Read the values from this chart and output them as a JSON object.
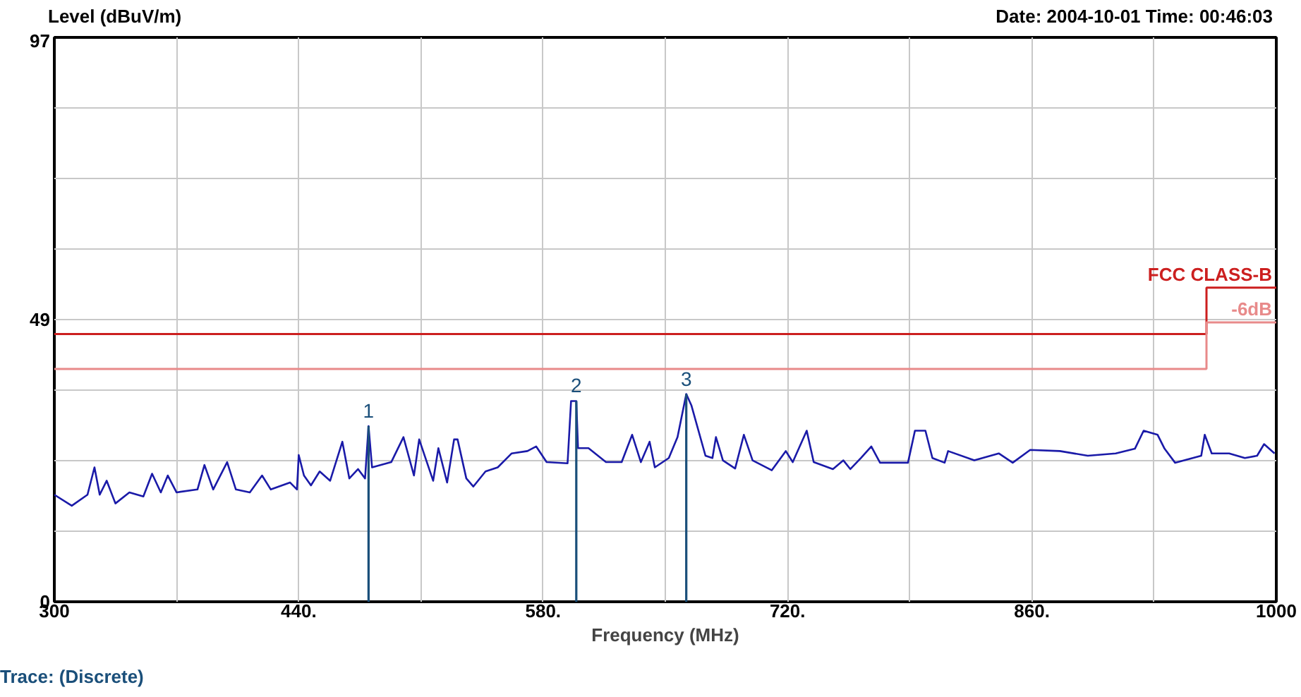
{
  "chart_data": {
    "type": "line",
    "ylabel": "Level (dBuV/m)",
    "xlabel": "Frequency (MHz)",
    "xlim": [
      300,
      1000
    ],
    "ylim": [
      0,
      97
    ],
    "xticks": [
      300,
      {
        "value": 370,
        "label": null
      },
      {
        "value": 440,
        "label": "440."
      },
      {
        "value": 510,
        "label": null
      },
      {
        "value": 580,
        "label": "580."
      },
      {
        "value": 650,
        "label": null
      },
      {
        "value": 720,
        "label": "720."
      },
      {
        "value": 790,
        "label": null
      },
      {
        "value": 860,
        "label": "860."
      },
      {
        "value": 930,
        "label": null
      },
      1000
    ],
    "yticks": [
      0,
      {
        "value": 12.125,
        "label": null
      },
      {
        "value": 24.25,
        "label": null
      },
      {
        "value": 36.375,
        "label": null
      },
      {
        "value": 48.5,
        "label": "49"
      },
      {
        "value": 60.625,
        "label": null
      },
      {
        "value": 72.75,
        "label": null
      },
      {
        "value": 84.875,
        "label": null
      },
      97
    ],
    "grid": true,
    "series": [
      {
        "color": "#1a1aa8",
        "x": [
          300,
          310,
          319,
          323,
          326,
          330,
          335,
          343,
          351,
          356,
          361,
          365,
          370,
          382,
          386,
          391,
          399,
          404,
          412,
          419,
          424,
          435,
          439,
          440,
          443,
          447,
          452,
          458,
          465,
          469,
          474,
          478,
          480,
          482,
          493,
          500,
          506,
          509,
          517,
          520,
          525,
          529,
          531,
          536,
          540,
          547,
          554,
          562,
          571,
          576,
          582,
          594,
          596,
          599,
          600,
          606,
          616,
          625,
          631,
          636,
          641,
          644,
          652,
          657,
          662,
          665,
          673,
          677,
          679,
          683,
          690,
          695,
          700,
          711,
          719,
          723,
          731,
          735,
          746,
          752,
          756,
          762,
          768,
          773,
          789,
          793,
          799,
          803,
          810,
          812,
          827,
          841,
          849,
          859,
          876,
          892,
          908,
          919,
          924,
          932,
          936,
          942,
          957,
          959,
          963,
          973,
          982,
          989,
          993,
          999
        ],
        "values": [
          18.4,
          16.5,
          18.4,
          23.1,
          18.4,
          20.8,
          16.9,
          18.8,
          18.1,
          22.0,
          18.8,
          21.7,
          18.8,
          19.3,
          23.5,
          19.3,
          24.0,
          19.3,
          18.8,
          21.7,
          19.3,
          20.5,
          19.3,
          25.2,
          21.7,
          20.0,
          22.4,
          20.8,
          27.5,
          21.2,
          22.8,
          21.2,
          30.2,
          23.1,
          24.0,
          28.3,
          21.7,
          27.9,
          20.8,
          26.4,
          20.5,
          27.9,
          27.9,
          21.2,
          19.8,
          22.4,
          23.1,
          25.5,
          25.9,
          26.7,
          24.0,
          23.8,
          34.5,
          34.5,
          26.4,
          26.4,
          24.0,
          24.0,
          28.7,
          24.0,
          27.5,
          23.1,
          24.7,
          28.3,
          35.7,
          33.7,
          25.1,
          24.7,
          28.3,
          24.3,
          22.9,
          28.7,
          24.3,
          22.6,
          25.9,
          24.0,
          29.4,
          24.0,
          22.8,
          24.3,
          22.8,
          24.7,
          26.7,
          23.9,
          23.9,
          29.4,
          29.4,
          24.7,
          23.9,
          25.9,
          24.3,
          25.5,
          23.9,
          26.1,
          25.9,
          25.1,
          25.5,
          26.3,
          29.4,
          28.7,
          26.3,
          23.9,
          25.1,
          28.7,
          25.5,
          25.5,
          24.7,
          25.1,
          27.1,
          25.5
        ]
      },
      {
        "type": "bar",
        "color": "#1a4f7a",
        "x": [
          480,
          599,
          662
        ],
        "values": [
          30.2,
          34.5,
          35.7
        ]
      },
      {
        "type": "step",
        "name": "FCC CLASS-B",
        "color": "#cc1f1f",
        "x": [
          300,
          960,
          1000
        ],
        "values": [
          46,
          54,
          54
        ]
      },
      {
        "type": "step",
        "name": "-6dB",
        "color": "#e88a8a",
        "x": [
          300,
          960,
          1000
        ],
        "values": [
          40,
          48,
          48
        ]
      }
    ],
    "annotations": [
      {
        "text": "1",
        "x": 480,
        "y": 30.2
      },
      {
        "text": "2",
        "x": 599,
        "y": 34.5
      },
      {
        "text": "3",
        "x": 662,
        "y": 35.7
      },
      "Date: 2004-10-01  Time: 00:46:03",
      "Trace:  (Discrete)"
    ]
  }
}
